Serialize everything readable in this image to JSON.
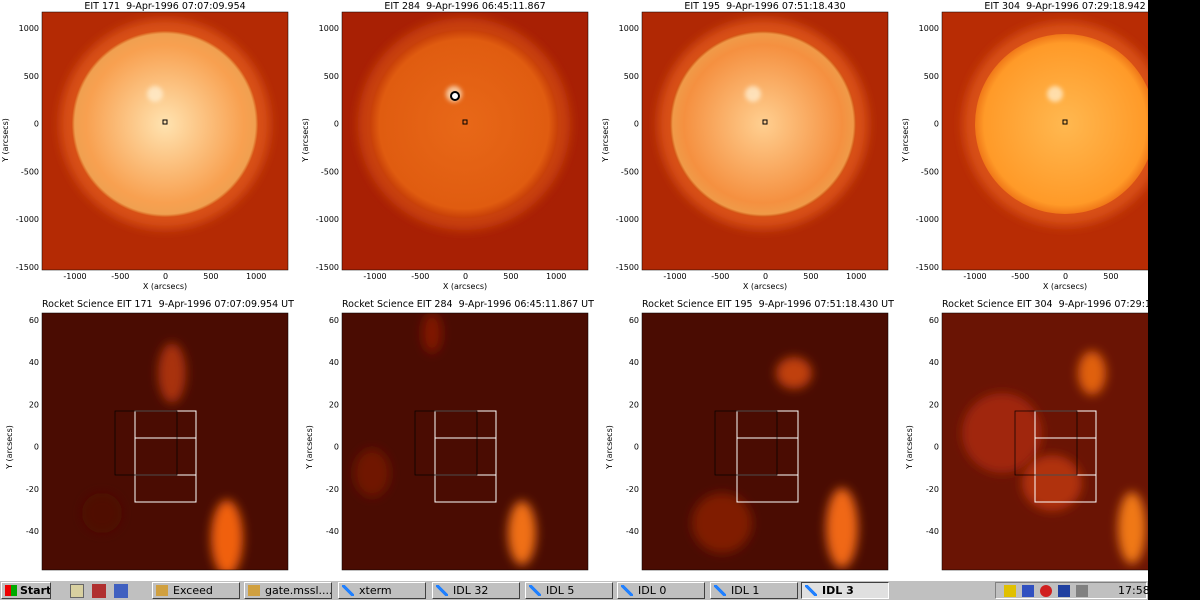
{
  "top_row": {
    "x_label": "X (arcsecs)",
    "y_label": "Y (arcsecs)",
    "x_ticks": [
      "-1000",
      "-500",
      "0",
      "500",
      "1000"
    ],
    "y_ticks": [
      "1000",
      "500",
      "0",
      "-500",
      "-1000",
      "-1500"
    ],
    "panels": [
      {
        "title": "EIT 171  9-Apr-1996 07:07:09.954"
      },
      {
        "title": "EIT 284  9-Apr-1996 06:45:11.867"
      },
      {
        "title": "EIT 195  9-Apr-1996 07:51:18.430"
      },
      {
        "title": "EIT 304  9-Apr-1996 07:29:18.942"
      }
    ]
  },
  "bottom_row": {
    "y_label": "Y (arcsecs)",
    "y_ticks": [
      "60",
      "40",
      "20",
      "0",
      "-20",
      "-40"
    ],
    "panels": [
      {
        "title": "Rocket Science EIT 171  9-Apr-1996 07:07:09.954 UT"
      },
      {
        "title": "Rocket Science EIT 284  9-Apr-1996 06:45:11.867 UT"
      },
      {
        "title": "Rocket Science EIT 195  9-Apr-1996 07:51:18.430 UT"
      },
      {
        "title": "Rocket Science EIT 304  9-Apr-1996 07:29:1"
      }
    ]
  },
  "taskbar": {
    "start": "Start",
    "buttons": [
      "Exceed",
      "gate.mssl....",
      "xterm",
      "IDL 32",
      "IDL 5",
      "IDL 0",
      "IDL 1",
      "IDL 3"
    ],
    "clock": "17:58"
  }
}
